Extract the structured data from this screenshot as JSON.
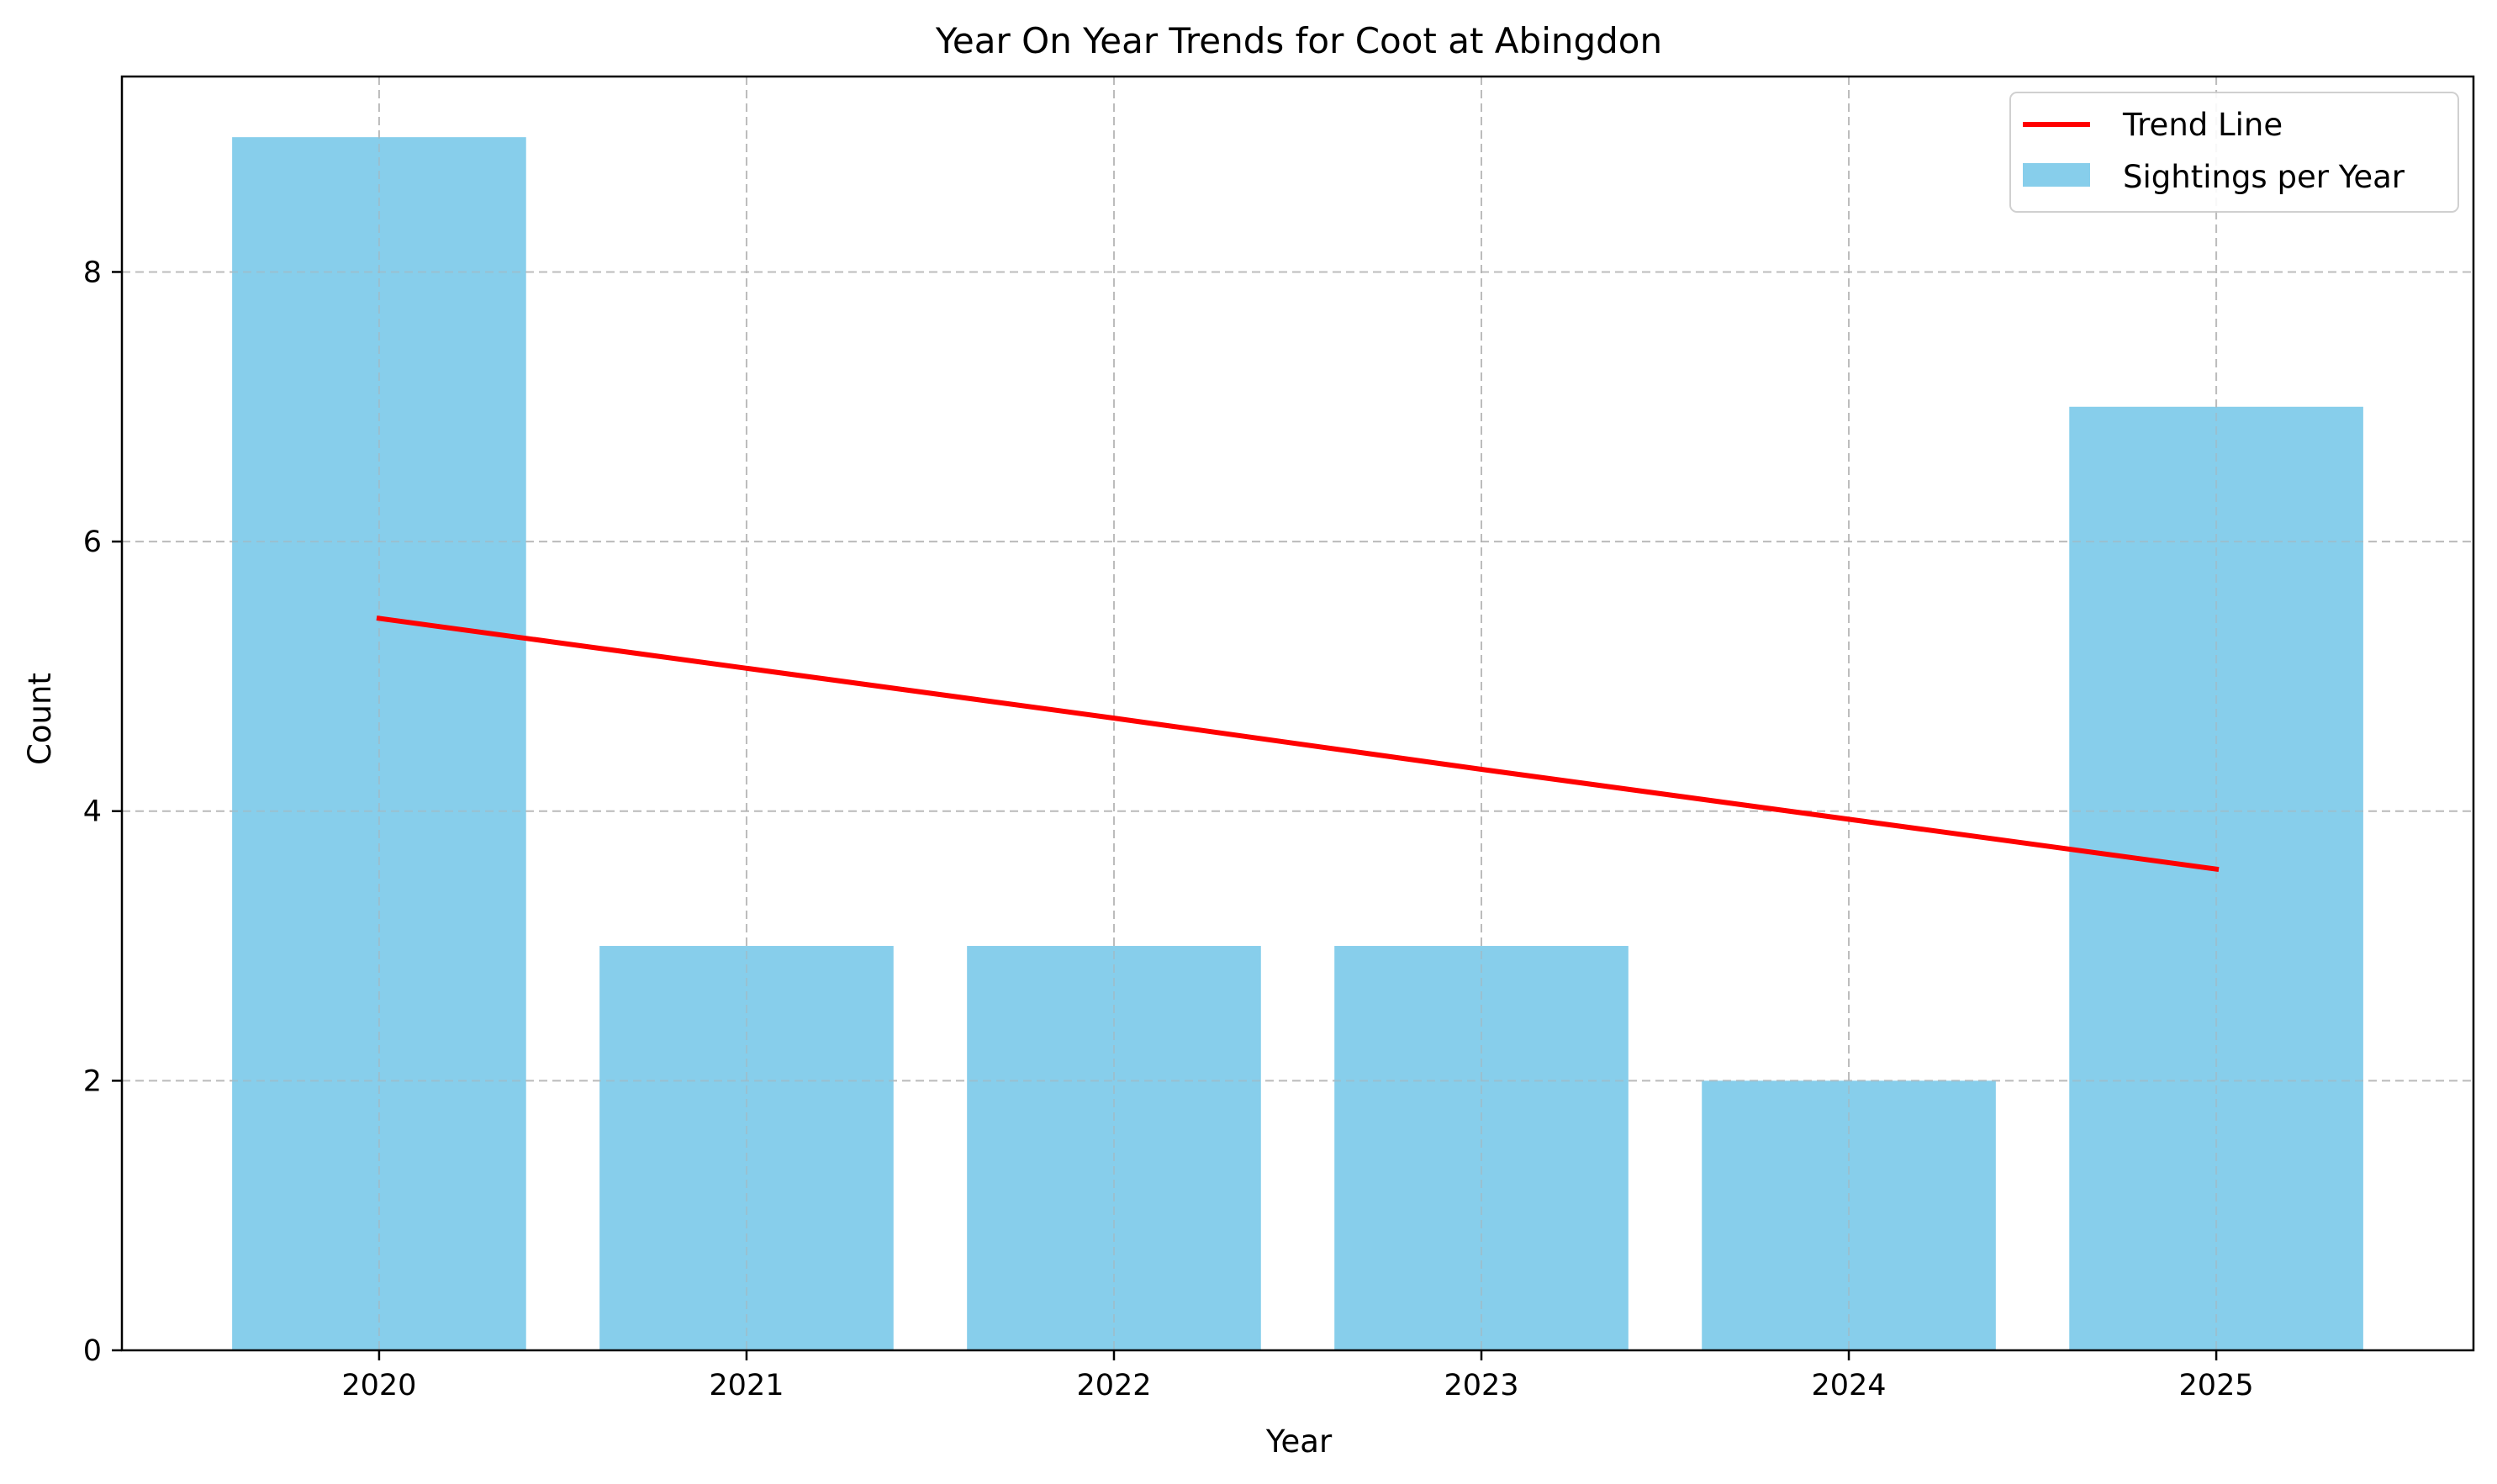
{
  "chart_data": {
    "type": "bar",
    "title": "Year On Year Trends for Coot at Abingdon",
    "xlabel": "Year",
    "ylabel": "Count",
    "categories": [
      "2020",
      "2021",
      "2022",
      "2023",
      "2024",
      "2025"
    ],
    "series": [
      {
        "name": "Sightings per Year",
        "type": "bar",
        "values": [
          9,
          3,
          3,
          3,
          2,
          7
        ],
        "color": "#87ceeb"
      },
      {
        "name": "Trend Line",
        "type": "line",
        "values": [
          5.43,
          5.06,
          4.69,
          4.31,
          3.94,
          3.57
        ],
        "color": "#ff0000"
      }
    ],
    "yticks": [
      0,
      2,
      4,
      6,
      8
    ],
    "ylim": [
      0,
      9.45
    ],
    "grid": true,
    "legend_position": "top-right",
    "legend": [
      "Trend Line",
      "Sightings per Year"
    ]
  }
}
